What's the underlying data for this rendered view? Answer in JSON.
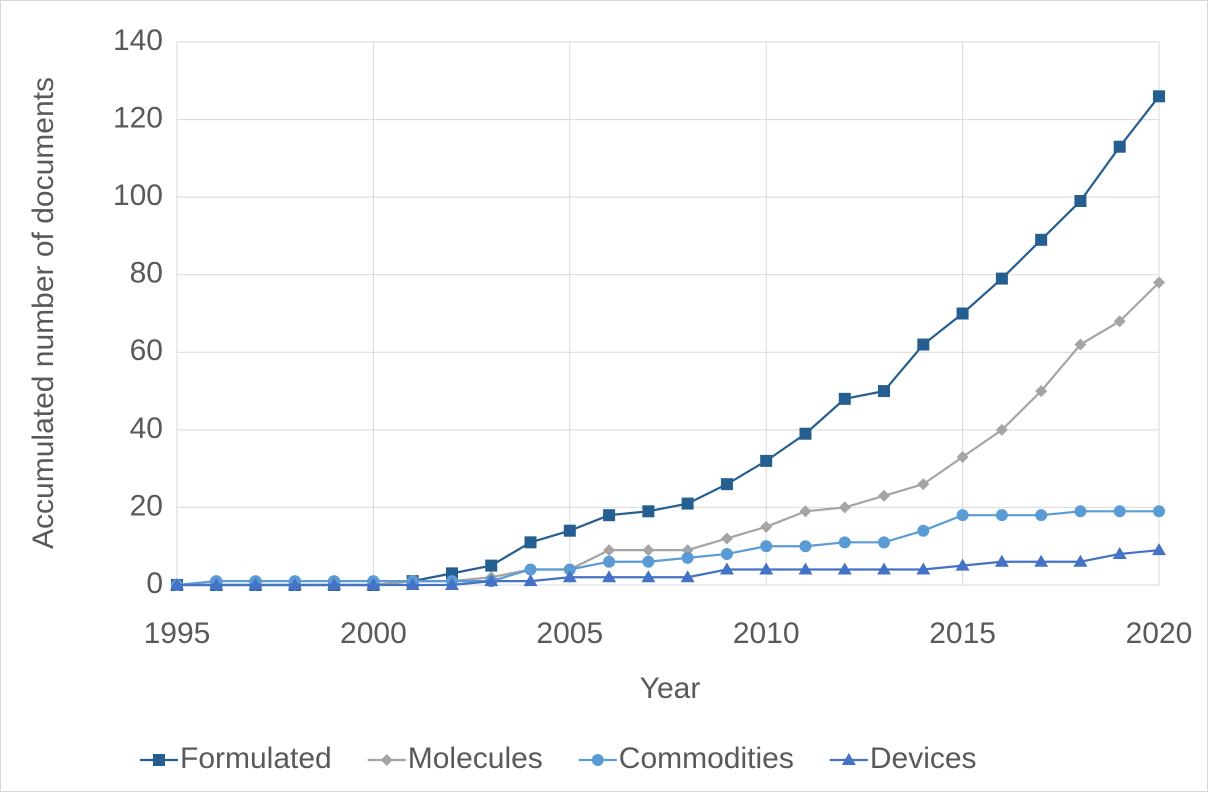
{
  "chart_data": {
    "type": "line",
    "x_label": "Year",
    "y_label": "Accumulated number of documents",
    "x": [
      1995,
      1996,
      1997,
      1998,
      1999,
      2000,
      2001,
      2002,
      2003,
      2004,
      2005,
      2006,
      2007,
      2008,
      2009,
      2010,
      2011,
      2012,
      2013,
      2014,
      2015,
      2016,
      2017,
      2018,
      2019,
      2020
    ],
    "series": [
      {
        "name": "Formulated",
        "color": "#255e91",
        "marker": "square",
        "values": [
          0,
          0,
          0,
          0,
          0,
          0,
          1,
          3,
          5,
          11,
          14,
          18,
          19,
          21,
          26,
          32,
          39,
          48,
          50,
          62,
          70,
          79,
          89,
          99,
          113,
          126
        ]
      },
      {
        "name": "Molecules",
        "color": "#a5a5a5",
        "marker": "diamond",
        "values": [
          0,
          0,
          0,
          0,
          0,
          0,
          1,
          1,
          2,
          4,
          4,
          9,
          9,
          9,
          12,
          15,
          19,
          20,
          23,
          26,
          33,
          40,
          50,
          62,
          68,
          78
        ]
      },
      {
        "name": "Commodities",
        "color": "#5b9bd5",
        "marker": "circle",
        "values": [
          0,
          1,
          1,
          1,
          1,
          1,
          1,
          1,
          1,
          4,
          4,
          6,
          6,
          7,
          8,
          10,
          10,
          11,
          11,
          14,
          18,
          18,
          18,
          19,
          19,
          19
        ]
      },
      {
        "name": "Devices",
        "color": "#4472c4",
        "marker": "triangle",
        "values": [
          0,
          0,
          0,
          0,
          0,
          0,
          0,
          0,
          1,
          1,
          2,
          2,
          2,
          2,
          4,
          4,
          4,
          4,
          4,
          4,
          5,
          6,
          6,
          6,
          8,
          9
        ]
      }
    ],
    "xlim": [
      1995,
      2020
    ],
    "xticks": [
      1995,
      2000,
      2005,
      2010,
      2015,
      2020
    ],
    "ylim": [
      0,
      140
    ],
    "yticks": [
      0,
      20,
      40,
      60,
      80,
      100,
      120,
      140
    ],
    "grid": true,
    "legend": "bottom"
  }
}
